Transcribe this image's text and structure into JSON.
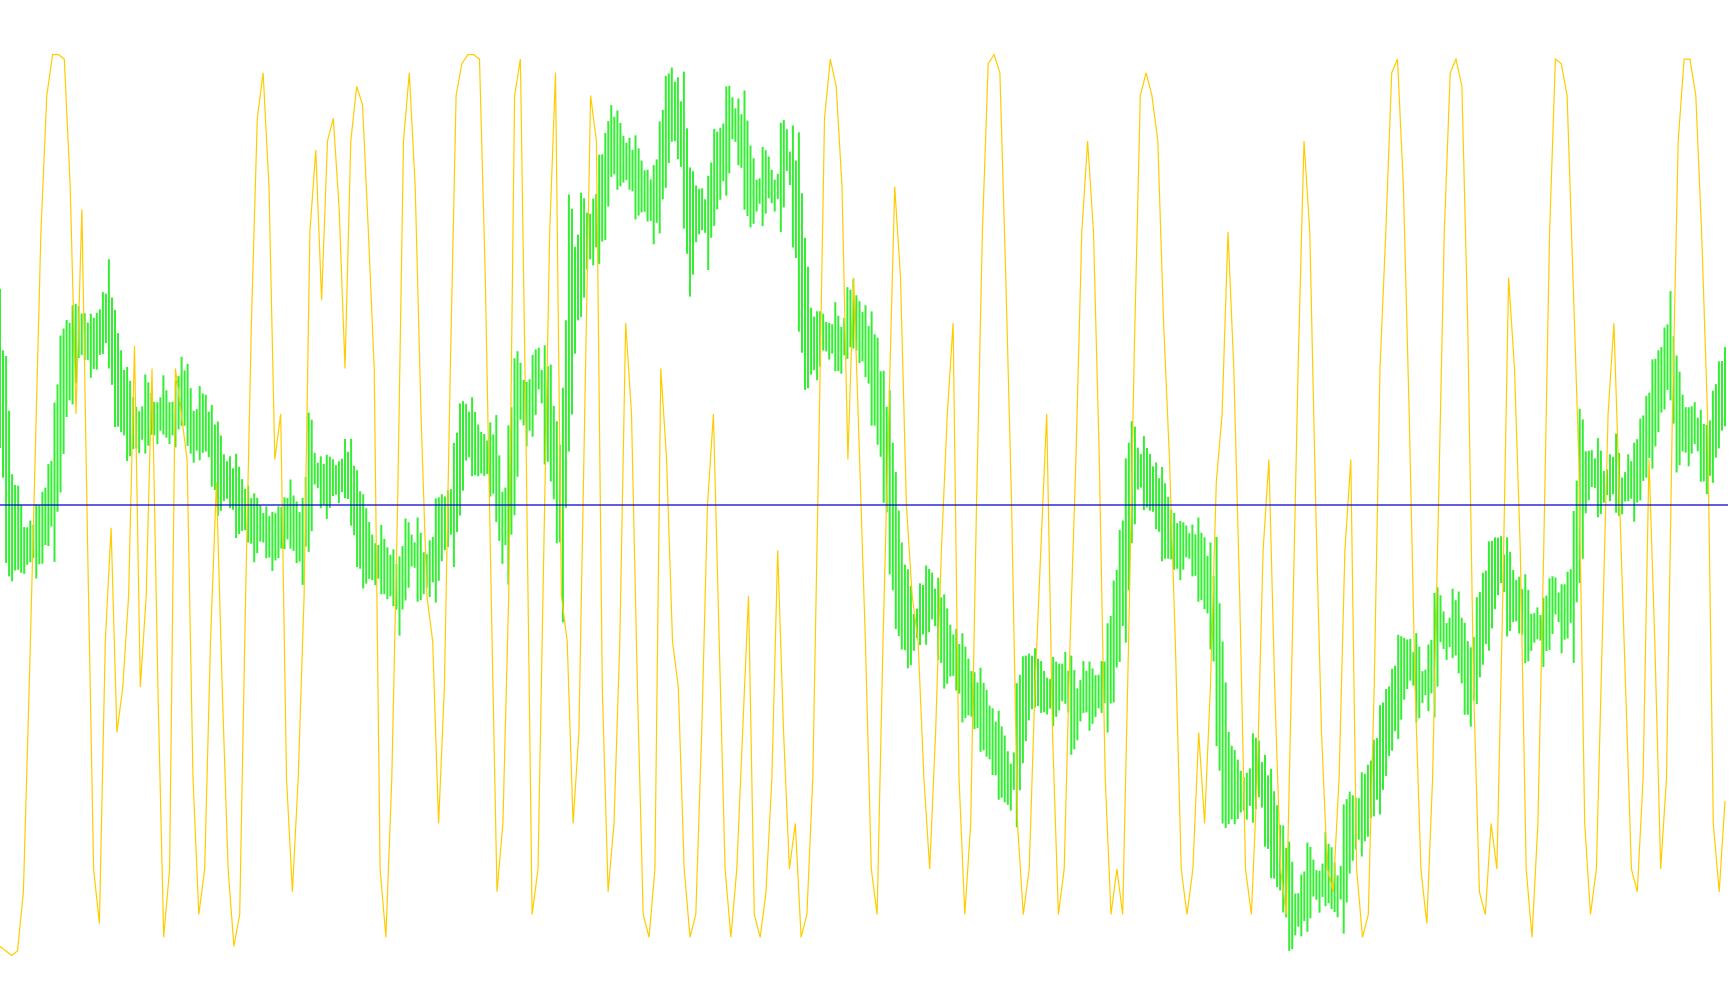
{
  "chart_data": {
    "type": "line",
    "title": "",
    "xlabel": "",
    "ylabel": "",
    "grid": false,
    "legend": "none",
    "ylim": [
      -1,
      1
    ],
    "zero_line": {
      "value": 0,
      "color": "#0000cc"
    },
    "series": [
      {
        "style": "line",
        "color": "#ffcc00",
        "values": [
          -0.97,
          -0.98,
          -0.99,
          -0.98,
          -0.85,
          -0.4,
          0.1,
          0.6,
          0.9,
          0.99,
          0.99,
          0.98,
          0.7,
          0.2,
          0.65,
          -0.1,
          -0.8,
          -0.92,
          -0.3,
          -0.05,
          -0.5,
          -0.4,
          -0.2,
          0.35,
          -0.4,
          -0.2,
          0.3,
          -0.4,
          -0.95,
          -0.8,
          0.3,
          0.2,
          0.1,
          -0.6,
          -0.9,
          -0.8,
          -0.3,
          0.05,
          -0.4,
          -0.8,
          -0.97,
          -0.9,
          -0.2,
          0.4,
          0.85,
          0.95,
          0.7,
          0.1,
          0.2,
          -0.6,
          -0.85,
          -0.6,
          -0.2,
          0.6,
          0.78,
          0.45,
          0.8,
          0.85,
          0.65,
          0.3,
          0.8,
          0.92,
          0.88,
          0.6,
          0.3,
          -0.8,
          -0.95,
          -0.6,
          0.0,
          0.8,
          0.95,
          0.7,
          0.2,
          -0.2,
          -0.3,
          -0.7,
          -0.4,
          0.3,
          0.9,
          0.97,
          0.99,
          0.99,
          0.98,
          0.5,
          -0.2,
          -0.85,
          -0.7,
          -0.2,
          0.9,
          0.98,
          0.1,
          -0.9,
          -0.8,
          -0.1,
          0.6,
          0.95,
          -0.2,
          -0.3,
          -0.7,
          -0.5,
          0.2,
          0.9,
          0.8,
          -0.4,
          -0.85,
          -0.7,
          -0.3,
          0.4,
          0.2,
          -0.4,
          -0.9,
          -0.95,
          -0.8,
          0.3,
          0.1,
          -0.3,
          -0.4,
          -0.8,
          -0.95,
          -0.9,
          -0.5,
          0.0,
          0.2,
          -0.3,
          -0.8,
          -0.95,
          -0.8,
          -0.5,
          -0.2,
          -0.9,
          -0.95,
          -0.85,
          -0.6,
          -0.1,
          -0.5,
          -0.8,
          -0.7,
          -0.95,
          -0.9,
          -0.6,
          0.1,
          0.85,
          0.98,
          0.92,
          0.7,
          0.1,
          0.5,
          0.1,
          -0.3,
          -0.8,
          -0.9,
          -0.3,
          0.2,
          0.7,
          0.5,
          0.0,
          -0.2,
          -0.3,
          -0.6,
          -0.8,
          -0.5,
          -0.1,
          0.2,
          0.4,
          -0.6,
          -0.9,
          -0.7,
          0.0,
          0.6,
          0.97,
          0.99,
          0.95,
          0.5,
          0.0,
          -0.7,
          -0.9,
          -0.8,
          -0.4,
          -0.1,
          0.2,
          -0.5,
          -0.9,
          -0.8,
          -0.3,
          0.1,
          0.6,
          0.8,
          0.6,
          0.1,
          -0.6,
          -0.9,
          -0.8,
          -0.9,
          -0.3,
          0.35,
          0.9,
          0.95,
          0.9,
          0.8,
          0.4,
          0.1,
          -0.3,
          -0.8,
          -0.9,
          -0.8,
          -0.5,
          -0.7,
          -0.4,
          0.05,
          0.2,
          0.6,
          0.3,
          -0.2,
          -0.8,
          -0.9,
          -0.6,
          -0.1,
          0.1,
          -0.4,
          -0.8,
          -0.9,
          -0.3,
          0.3,
          0.8,
          0.6,
          0.0,
          -0.5,
          -0.8,
          -0.85,
          -0.6,
          -0.1,
          0.1,
          -0.8,
          -0.95,
          -0.9,
          -0.4,
          0.3,
          0.6,
          0.95,
          0.98,
          0.7,
          0.2,
          -0.4,
          -0.8,
          -0.92,
          -0.6,
          0.0,
          0.6,
          0.95,
          0.98,
          0.92,
          0.4,
          -0.4,
          -0.85,
          -0.9,
          -0.7,
          -0.8,
          -0.2,
          0.5,
          0.3,
          -0.1,
          -0.8,
          -0.95,
          -0.7,
          -0.1,
          0.6,
          0.98,
          0.97,
          0.9,
          0.5,
          0.1,
          -0.7,
          -0.9,
          -0.8,
          -0.3,
          0.2,
          0.4,
          0.0,
          -0.4,
          -0.8,
          -0.85,
          -0.6,
          0.1,
          -0.3,
          -0.8,
          -0.6,
          0.2,
          0.8,
          0.98,
          0.98,
          0.9,
          0.6,
          0.2,
          -0.7,
          -0.85,
          -0.65
        ]
      },
      {
        "style": "bars",
        "color": "#33ee33",
        "values": [
          0.3,
          0.1,
          -0.05,
          -0.05,
          -0.1,
          -0.08,
          -0.08,
          -0.05,
          0.0,
          0.05,
          0.2,
          0.3,
          0.33,
          0.38,
          0.37,
          0.35,
          0.36,
          0.4,
          0.42,
          0.3,
          0.25,
          0.2,
          0.18,
          0.16,
          0.2,
          0.2,
          0.18,
          0.22,
          0.18,
          0.2,
          0.25,
          0.22,
          0.15,
          0.18,
          0.18,
          0.13,
          0.08,
          0.06,
          0.05,
          0.02,
          0.0,
          -0.02,
          -0.05,
          -0.04,
          -0.06,
          -0.08,
          -0.06,
          -0.04,
          -0.02,
          -0.06,
          -0.08,
          0.05,
          0.08,
          0.05,
          0.04,
          0.06,
          0.05,
          0.08,
          0.05,
          -0.03,
          -0.08,
          -0.1,
          -0.13,
          -0.12,
          -0.15,
          -0.16,
          -0.2,
          -0.12,
          -0.1,
          -0.12,
          -0.15,
          -0.14,
          -0.1,
          -0.05,
          -0.03,
          0.0,
          0.1,
          0.16,
          0.15,
          0.12,
          0.11,
          0.1,
          0.08,
          -0.05,
          0.0,
          0.15,
          0.25,
          0.2,
          0.24,
          0.3,
          0.22,
          0.18,
          0.05,
          0.0,
          0.4,
          0.45,
          0.55,
          0.58,
          0.6,
          0.65,
          0.7,
          0.8,
          0.78,
          0.76,
          0.75,
          0.72,
          0.7,
          0.68,
          0.66,
          0.72,
          0.82,
          0.88,
          0.85,
          0.78,
          0.6,
          0.64,
          0.65,
          0.62,
          0.72,
          0.75,
          0.8,
          0.85,
          0.82,
          0.78,
          0.7,
          0.68,
          0.7,
          0.72,
          0.68,
          0.72,
          0.78,
          0.7,
          0.6,
          0.42,
          0.36,
          0.35,
          0.38,
          0.36,
          0.37,
          0.34,
          0.4,
          0.42,
          0.38,
          0.36,
          0.3,
          0.25,
          0.15,
          0.05,
          -0.1,
          -0.2,
          -0.25,
          -0.28,
          -0.24,
          -0.22,
          -0.2,
          -0.25,
          -0.3,
          -0.32,
          -0.34,
          -0.38,
          -0.4,
          -0.43,
          -0.45,
          -0.48,
          -0.52,
          -0.55,
          -0.58,
          -0.62,
          -0.55,
          -0.45,
          -0.4,
          -0.38,
          -0.4,
          -0.42,
          -0.41,
          -0.4,
          -0.38,
          -0.44,
          -0.46,
          -0.4,
          -0.42,
          -0.42,
          -0.4,
          -0.38,
          -0.3,
          -0.2,
          -0.1,
          0.05,
          0.08,
          0.07,
          0.05,
          0.02,
          -0.02,
          -0.05,
          -0.08,
          -0.1,
          -0.08,
          -0.1,
          -0.12,
          -0.15,
          -0.2,
          -0.3,
          -0.5,
          -0.6,
          -0.62,
          -0.63,
          -0.64,
          -0.6,
          -0.58,
          -0.65,
          -0.7,
          -0.75,
          -0.8,
          -0.86,
          -0.9,
          -0.88,
          -0.84,
          -0.82,
          -0.85,
          -0.8,
          -0.82,
          -0.86,
          -0.8,
          -0.72,
          -0.7,
          -0.68,
          -0.65,
          -0.6,
          -0.56,
          -0.5,
          -0.45,
          -0.4,
          -0.36,
          -0.34,
          -0.38,
          -0.4,
          -0.38,
          -0.33,
          -0.25,
          -0.3,
          -0.26,
          -0.28,
          -0.36,
          -0.4,
          -0.32,
          -0.25,
          -0.2,
          -0.15,
          -0.12,
          -0.18,
          -0.2,
          -0.22,
          -0.25,
          -0.28,
          -0.26,
          -0.28,
          -0.24,
          -0.2,
          -0.25,
          -0.22,
          -0.18,
          0.02,
          0.05,
          0.08,
          0.06,
          0.04,
          0.06,
          0.07,
          0.02,
          0.06,
          0.05,
          0.1,
          0.15,
          0.2,
          0.25,
          0.3,
          0.35,
          0.2,
          0.18,
          0.15,
          0.18,
          0.13,
          0.1,
          0.15,
          0.22,
          0.26
        ]
      }
    ]
  }
}
